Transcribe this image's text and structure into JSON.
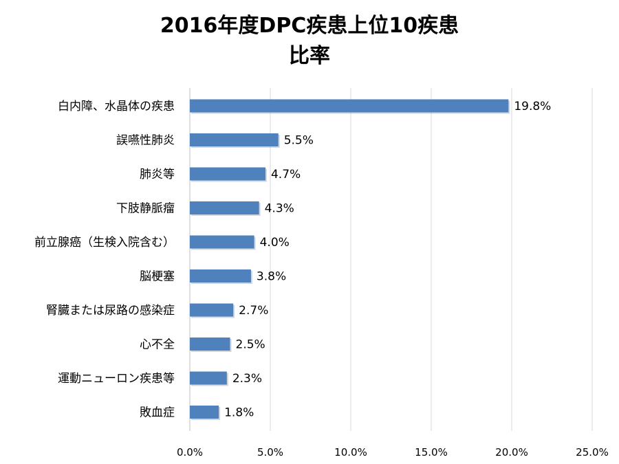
{
  "chart_data": {
    "type": "bar",
    "orientation": "horizontal",
    "title": [
      "2016年度DPC疾患上位10疾患",
      "比率"
    ],
    "categories": [
      "白内障、水晶体の疾患",
      "誤嚥性肺炎",
      "肺炎等",
      "下肢静脈瘤",
      "前立腺癌（生検入院含む）",
      "脳梗塞",
      "腎臓または尿路の感染症",
      "心不全",
      "運動ニューロン疾患等",
      "敗血症"
    ],
    "values": [
      19.8,
      5.5,
      4.7,
      4.3,
      4.0,
      3.8,
      2.7,
      2.5,
      2.3,
      1.8
    ],
    "value_labels": [
      "19.8%",
      "5.5%",
      "4.7%",
      "4.3%",
      "4.0%",
      "3.8%",
      "2.7%",
      "2.5%",
      "2.3%",
      "1.8%"
    ],
    "xlim": [
      0,
      25
    ],
    "x_ticks": [
      0,
      5,
      10,
      15,
      20,
      25
    ],
    "x_tick_labels": [
      "0.0%",
      "5.0%",
      "10.0%",
      "15.0%",
      "20.0%",
      "25.0%"
    ],
    "grid": "vertical",
    "legend": "none",
    "bar_color": "#4f81bd",
    "grid_color": "#d9d9d9"
  }
}
